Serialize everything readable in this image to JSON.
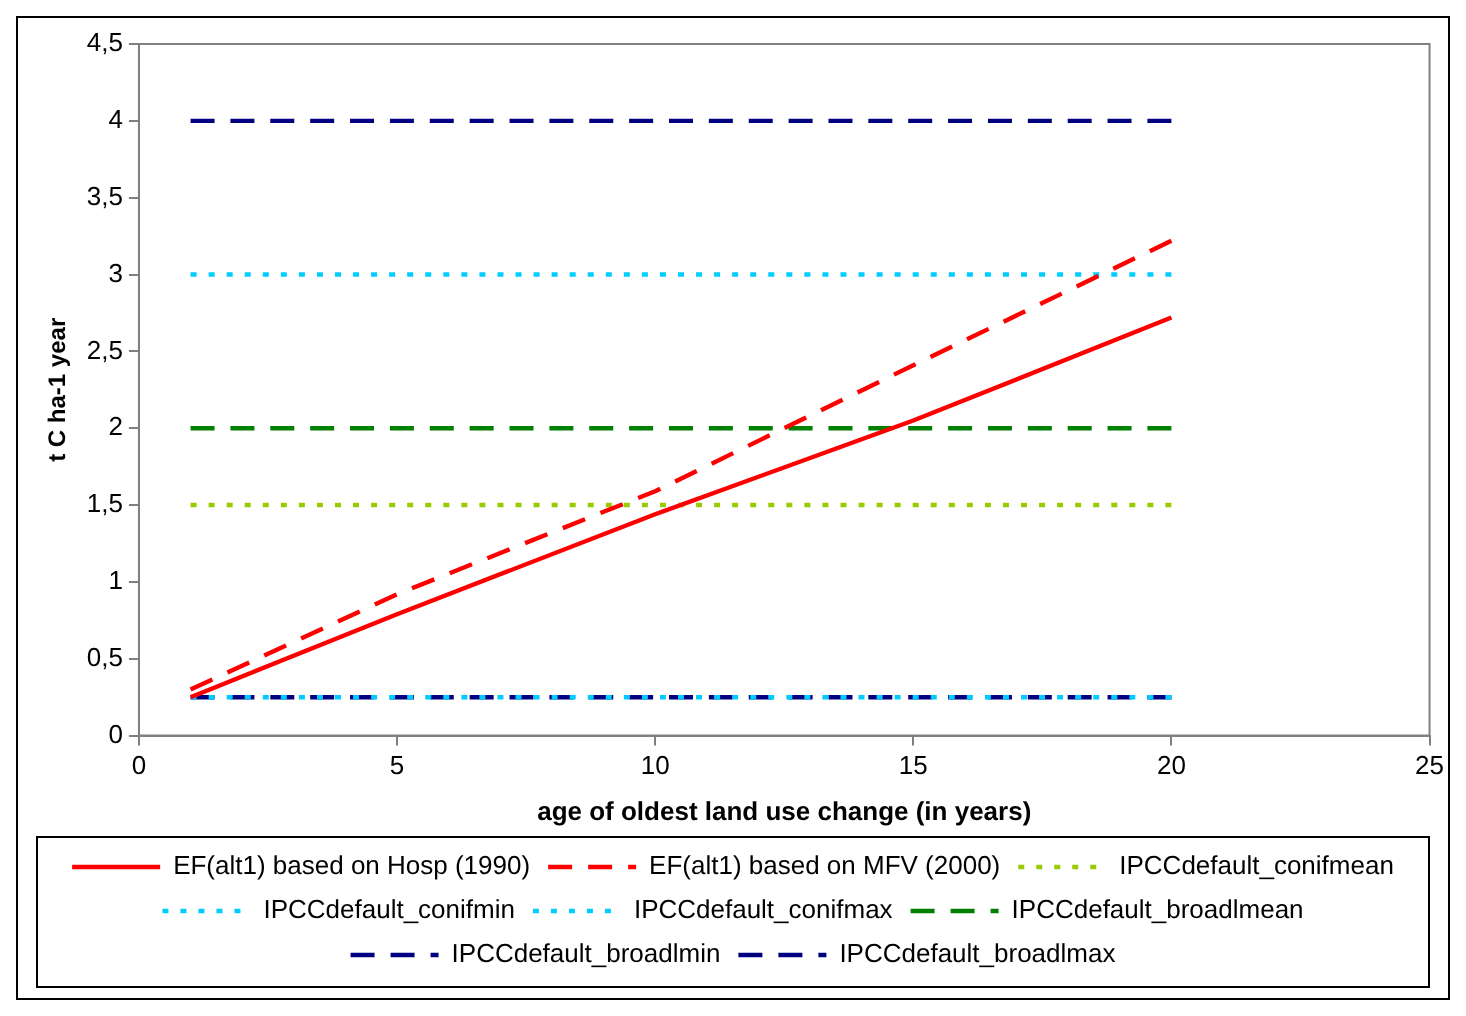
{
  "chart_data": {
    "type": "line",
    "xlabel": "age of oldest land use change (in years)",
    "ylabel": "t C ha-1 year",
    "x": [
      1,
      5,
      10,
      15,
      20
    ],
    "xlim": [
      0,
      25
    ],
    "xticks": [
      0,
      5,
      10,
      15,
      20,
      25
    ],
    "ylim": [
      0,
      4.5
    ],
    "yticks": [
      0,
      {
        "value": 0.5,
        "label": "0,5"
      },
      1,
      {
        "value": 1.5,
        "label": "1,5"
      },
      2,
      {
        "value": 2.5,
        "label": "2,5"
      },
      3,
      {
        "value": 3.5,
        "label": "3,5"
      },
      4,
      {
        "value": 4.5,
        "label": "4,5"
      }
    ],
    "grid": false,
    "legend": "bottom",
    "marker": "none",
    "series": [
      {
        "name": "EF(alt1) based on Hosp (1990)",
        "color": "#ff0000",
        "line_style": "solid",
        "values": [
          0.25,
          0.79,
          1.44,
          2.05,
          2.72
        ]
      },
      {
        "name": "EF(alt1) based on MFV (2000)",
        "color": "#ff0000",
        "line_style": "dashed",
        "values": [
          0.3,
          0.92,
          1.59,
          2.41,
          3.22
        ]
      },
      {
        "name": "IPCCdefault_conifmean",
        "color": "#99cc00",
        "line_style": "dotted",
        "values": [
          1.5,
          1.5,
          1.5,
          1.5,
          1.5
        ]
      },
      {
        "name": "IPCCdefault_conifmin",
        "color": "#00ccff",
        "line_style": "dotted",
        "values": [
          0.25,
          0.25,
          0.25,
          0.25,
          0.25
        ]
      },
      {
        "name": "IPCCdefault_conifmax",
        "color": "#00ccff",
        "line_style": "dotted",
        "values": [
          3,
          3,
          3,
          3,
          3
        ]
      },
      {
        "name": "IPCCdefault_broadlmean",
        "color": "#008000",
        "line_style": "dashed",
        "values": [
          2,
          2,
          2,
          2,
          2
        ]
      },
      {
        "name": "IPCCdefault_broadlmin",
        "color": "#000080",
        "line_style": "dashed",
        "values": [
          0.25,
          0.25,
          0.25,
          0.25,
          0.25
        ]
      },
      {
        "name": "IPCCdefault_broadlmax",
        "color": "#000080",
        "line_style": "dashed",
        "values": [
          4,
          4,
          4,
          4,
          4
        ]
      }
    ]
  }
}
